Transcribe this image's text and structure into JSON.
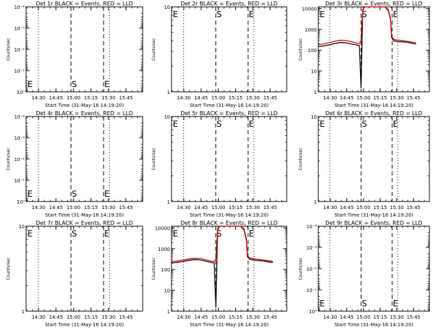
{
  "figure": {
    "xlabel": "Start Time (31-May-16 14:19:20)",
    "ylabel": "Counts/sec",
    "x_tick_labels": [
      "14:30",
      "14:45",
      "15:00",
      "15:15",
      "15:30",
      "15:45"
    ],
    "x_ticks_minutes": [
      10.67,
      25.67,
      40.67,
      55.67,
      70.67,
      85.67
    ],
    "markers": {
      "eclipse_label": "E",
      "saa_label": "S"
    }
  },
  "chart_data": [
    {
      "type": "line",
      "title": "Det 1r BLACK = Events, RED = LLD",
      "xlabel": "Start Time (31-May-16 14:19:20)",
      "ylabel": "Counts/sec",
      "xlim": [
        0,
        100
      ],
      "ylog": true,
      "ylim": [
        1,
        0.0001
      ],
      "y_tick_labels": [
        "10⁰",
        "10⁻¹",
        "10⁻²",
        "10⁻³",
        "10⁻⁴"
      ],
      "y_tick_values": [
        1,
        0.1,
        0.01,
        0.001,
        0.0001
      ],
      "vlines": [
        {
          "minute": 10.5,
          "style": "dotted"
        },
        {
          "minute": 38.5,
          "style": "dashed",
          "label": "S"
        },
        {
          "minute": 66.5,
          "style": "dashed",
          "label": "E"
        },
        {
          "minute": 71.5,
          "style": "dotted"
        }
      ],
      "vline_left_label": "E",
      "label_position": "bottom",
      "series": []
    },
    {
      "type": "line",
      "title": "Det 2r BLACK = Events, RED = LLD",
      "xlabel": "Start Time (31-May-16 14:19:20)",
      "ylabel": "Counts/sec",
      "xlim": [
        0,
        100
      ],
      "ylog": true,
      "ylim": [
        1,
        10
      ],
      "y_tick_labels": [
        "1",
        "10"
      ],
      "y_tick_values": [
        1,
        10
      ],
      "vlines": [
        {
          "minute": 10.5,
          "style": "dotted"
        },
        {
          "minute": 38.5,
          "style": "dashed",
          "label": "S"
        },
        {
          "minute": 66.5,
          "style": "dashed",
          "label": "E"
        },
        {
          "minute": 71.5,
          "style": "dotted"
        }
      ],
      "vline_left_label": "E",
      "label_position": "top",
      "series": []
    },
    {
      "type": "line",
      "title": "Det 3r BLACK = Events, RED = LLD",
      "xlabel": "Start Time (31-May-16 14:19:20)",
      "ylabel": "Counts/sec",
      "xlim": [
        0,
        100
      ],
      "ylog": true,
      "ylim": [
        1,
        12000
      ],
      "y_tick_labels": [
        "1",
        "10",
        "100",
        "1000",
        "10000"
      ],
      "y_tick_values": [
        1,
        10,
        100,
        1000,
        10000
      ],
      "vlines": [
        {
          "minute": 10.5,
          "style": "dotted"
        },
        {
          "minute": 38.5,
          "style": "dashed",
          "label": "S"
        },
        {
          "minute": 66.5,
          "style": "dashed",
          "label": "E"
        },
        {
          "minute": 71.5,
          "style": "dotted"
        }
      ],
      "vline_left_label": "E",
      "label_position": "top",
      "series": [
        {
          "name": "Events",
          "color": "#000000",
          "x": [
            0,
            5,
            10,
            15,
            20,
            25,
            30,
            35,
            37,
            38.5,
            40,
            42,
            45,
            50,
            55,
            60,
            63,
            65,
            66,
            68,
            72,
            80,
            85,
            88
          ],
          "y": [
            150,
            160,
            180,
            210,
            230,
            225,
            200,
            175,
            170,
            1.5,
            9000,
            12000,
            12000,
            12000,
            12000,
            12000,
            8000,
            3000,
            400,
            280,
            260,
            240,
            210,
            200
          ]
        },
        {
          "name": "LLD",
          "color": "#e00000",
          "x": [
            0,
            5,
            10,
            15,
            20,
            25,
            30,
            35,
            37,
            38.5,
            40,
            42,
            45,
            50,
            55,
            60,
            63,
            65,
            66,
            68,
            72,
            80,
            85,
            88
          ],
          "y": [
            185,
            200,
            230,
            270,
            300,
            290,
            255,
            215,
            210,
            300,
            9000,
            12000,
            12000,
            12000,
            12000,
            12000,
            9000,
            3500,
            450,
            330,
            300,
            270,
            240,
            230
          ]
        }
      ]
    },
    {
      "type": "line",
      "title": "Det 4r BLACK = Events, RED = LLD",
      "xlabel": "Start Time (31-May-16 14:19:20)",
      "ylabel": "Counts/sec",
      "xlim": [
        0,
        100
      ],
      "ylog": true,
      "ylim": [
        1,
        0.0001
      ],
      "y_tick_labels": [
        "10⁰",
        "10⁻¹",
        "10⁻²",
        "10⁻³",
        "10⁻⁴"
      ],
      "y_tick_values": [
        1,
        0.1,
        0.01,
        0.001,
        0.0001
      ],
      "vlines": [
        {
          "minute": 10.5,
          "style": "dotted"
        },
        {
          "minute": 38.5,
          "style": "dashed",
          "label": "S"
        },
        {
          "minute": 66.5,
          "style": "dashed",
          "label": "E"
        },
        {
          "minute": 71.5,
          "style": "dotted"
        }
      ],
      "vline_left_label": "E",
      "label_position": "bottom",
      "series": []
    },
    {
      "type": "line",
      "title": "Det 5r BLACK = Events, RED = LLD",
      "xlabel": "Start Time (31-May-16 14:19:20)",
      "ylabel": "Counts/sec",
      "xlim": [
        0,
        100
      ],
      "ylog": true,
      "ylim": [
        1,
        10
      ],
      "y_tick_labels": [
        "1",
        "10"
      ],
      "y_tick_values": [
        1,
        10
      ],
      "vlines": [
        {
          "minute": 10.5,
          "style": "dotted"
        },
        {
          "minute": 38.5,
          "style": "dashed",
          "label": "S"
        },
        {
          "minute": 66.5,
          "style": "dashed",
          "label": "E"
        },
        {
          "minute": 71.5,
          "style": "dotted"
        }
      ],
      "vline_left_label": "E",
      "label_position": "top",
      "series": []
    },
    {
      "type": "line",
      "title": "Det 6r BLACK = Events, RED = LLD",
      "xlabel": "Start Time (31-May-16 14:19:20)",
      "ylabel": "Counts/sec",
      "xlim": [
        0,
        100
      ],
      "ylog": true,
      "ylim": [
        1,
        10
      ],
      "y_tick_labels": [
        "1",
        "10"
      ],
      "y_tick_values": [
        1,
        10
      ],
      "vlines": [
        {
          "minute": 10.5,
          "style": "dotted"
        },
        {
          "minute": 38.5,
          "style": "dashed",
          "label": "S"
        },
        {
          "minute": 66.5,
          "style": "dashed",
          "label": "E"
        },
        {
          "minute": 71.5,
          "style": "dotted"
        }
      ],
      "vline_left_label": "E",
      "label_position": "top",
      "series": []
    },
    {
      "type": "line",
      "title": "Det 7r BLACK = Events, RED = LLD",
      "xlabel": "Start Time (31-May-16 14:19:20)",
      "ylabel": "Counts/sec",
      "xlim": [
        0,
        100
      ],
      "ylog": true,
      "ylim": [
        1,
        10
      ],
      "y_tick_labels": [
        "1",
        "10"
      ],
      "y_tick_values": [
        1,
        10
      ],
      "vlines": [
        {
          "minute": 10.5,
          "style": "dotted"
        },
        {
          "minute": 38.5,
          "style": "dashed",
          "label": "S"
        },
        {
          "minute": 66.5,
          "style": "dashed",
          "label": "E"
        },
        {
          "minute": 71.5,
          "style": "dotted"
        }
      ],
      "vline_left_label": "E",
      "label_position": "top",
      "series": []
    },
    {
      "type": "line",
      "title": "Det 8r BLACK = Events, RED = LLD",
      "xlabel": "Start Time (31-May-16 14:19:20)",
      "ylabel": "Counts/sec",
      "xlim": [
        0,
        100
      ],
      "ylog": true,
      "ylim": [
        1,
        12000
      ],
      "y_tick_labels": [
        "1",
        "10",
        "100",
        "1000",
        "10000"
      ],
      "y_tick_values": [
        1,
        10,
        100,
        1000,
        10000
      ],
      "vlines": [
        {
          "minute": 10.5,
          "style": "dotted"
        },
        {
          "minute": 38.5,
          "style": "dashed",
          "label": "S"
        },
        {
          "minute": 66.5,
          "style": "dashed",
          "label": "E"
        },
        {
          "minute": 71.5,
          "style": "dotted"
        }
      ],
      "vline_left_label": "E",
      "label_position": "top",
      "series": [
        {
          "name": "Events",
          "color": "#000000",
          "x": [
            0,
            5,
            10,
            15,
            20,
            25,
            30,
            35,
            37,
            38.5,
            40,
            42,
            45,
            50,
            55,
            60,
            63,
            65,
            66,
            68,
            72,
            80,
            85,
            88
          ],
          "y": [
            210,
            220,
            245,
            275,
            300,
            290,
            250,
            215,
            210,
            1.5,
            9000,
            12000,
            12000,
            12000,
            12000,
            12000,
            8000,
            2500,
            400,
            310,
            280,
            255,
            230,
            220
          ]
        },
        {
          "name": "LLD",
          "color": "#e00000",
          "x": [
            0,
            5,
            10,
            15,
            20,
            25,
            30,
            35,
            37,
            38.5,
            40,
            42,
            45,
            50,
            55,
            60,
            63,
            65,
            66,
            68,
            72,
            80,
            85,
            88
          ],
          "y": [
            240,
            255,
            285,
            320,
            350,
            340,
            290,
            250,
            245,
            330,
            9000,
            12000,
            12000,
            12000,
            12000,
            12000,
            9000,
            3000,
            450,
            360,
            320,
            290,
            260,
            250
          ]
        }
      ]
    },
    {
      "type": "line",
      "title": "Det 9r BLACK = Events, RED = LLD",
      "xlabel": "Start Time (31-May-16 14:19:20)",
      "ylabel": "Counts/sec",
      "xlim": [
        0,
        100
      ],
      "ylog": true,
      "ylim": [
        1,
        0.0001
      ],
      "y_tick_labels": [
        "10⁰",
        "10⁻¹",
        "10⁻²",
        "10⁻³",
        "10⁻⁴"
      ],
      "y_tick_values": [
        1,
        0.1,
        0.01,
        0.001,
        0.0001
      ],
      "vlines": [
        {
          "minute": 10.5,
          "style": "dotted"
        },
        {
          "minute": 38.5,
          "style": "dashed",
          "label": "S"
        },
        {
          "minute": 66.5,
          "style": "dashed",
          "label": "E"
        },
        {
          "minute": 71.5,
          "style": "dotted"
        }
      ],
      "vline_left_label": "E",
      "label_position": "bottom",
      "series": []
    }
  ]
}
